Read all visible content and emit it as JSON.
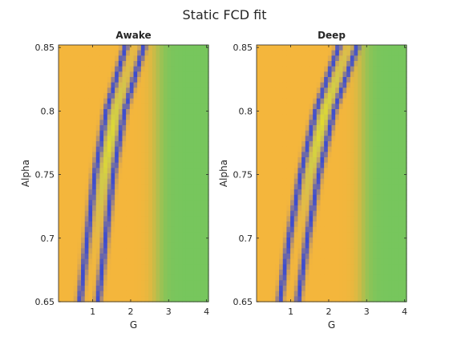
{
  "figure": {
    "title": "Static FCD fit"
  },
  "chart_data": [
    {
      "type": "heatmap",
      "title": "Awake",
      "xlabel": "G",
      "ylabel": "Alpha",
      "xlim": [
        0.1,
        4.05
      ],
      "ylim": [
        0.65,
        0.852
      ],
      "xticks": [
        "1",
        "2",
        "3",
        "4"
      ],
      "yticks": [
        "0.65",
        "0.7",
        "0.75",
        "0.8",
        "0.85"
      ],
      "xtick_values": [
        1,
        2,
        3,
        4
      ],
      "ytick_values": [
        0.65,
        0.7,
        0.75,
        0.8,
        0.85
      ],
      "colors": {
        "background_low": "#f4b63c",
        "background_high": "#77c65d",
        "ridge_low": "#3246d8",
        "ridge_high": "#f2e21c"
      },
      "band": {
        "center_g_at_alpha": [
          [
            0.65,
            0.9
          ],
          [
            0.7,
            1.1
          ],
          [
            0.75,
            1.3
          ],
          [
            0.8,
            1.6
          ],
          [
            0.85,
            2.1
          ]
        ],
        "peak_alpha": 0.775,
        "transition_g": 2.7
      }
    },
    {
      "type": "heatmap",
      "title": "Deep",
      "xlabel": "G",
      "ylabel": "Alpha",
      "xlim": [
        0.1,
        4.05
      ],
      "ylim": [
        0.65,
        0.852
      ],
      "xticks": [
        "1",
        "2",
        "3",
        "4"
      ],
      "yticks": [
        "0.65",
        "0.7",
        "0.75",
        "0.8",
        "0.85"
      ],
      "xtick_values": [
        1,
        2,
        3,
        4
      ],
      "ytick_values": [
        0.65,
        0.7,
        0.75,
        0.8,
        0.85
      ],
      "colors": {
        "background_low": "#f4b63c",
        "background_high": "#77c65d",
        "ridge_low": "#3246d8",
        "ridge_high": "#f2e21c"
      },
      "band": {
        "center_g_at_alpha": [
          [
            0.65,
            0.95
          ],
          [
            0.7,
            1.2
          ],
          [
            0.75,
            1.5
          ],
          [
            0.8,
            1.9
          ],
          [
            0.85,
            2.5
          ]
        ],
        "peak_alpha": 0.79,
        "transition_g": 2.9
      }
    }
  ]
}
